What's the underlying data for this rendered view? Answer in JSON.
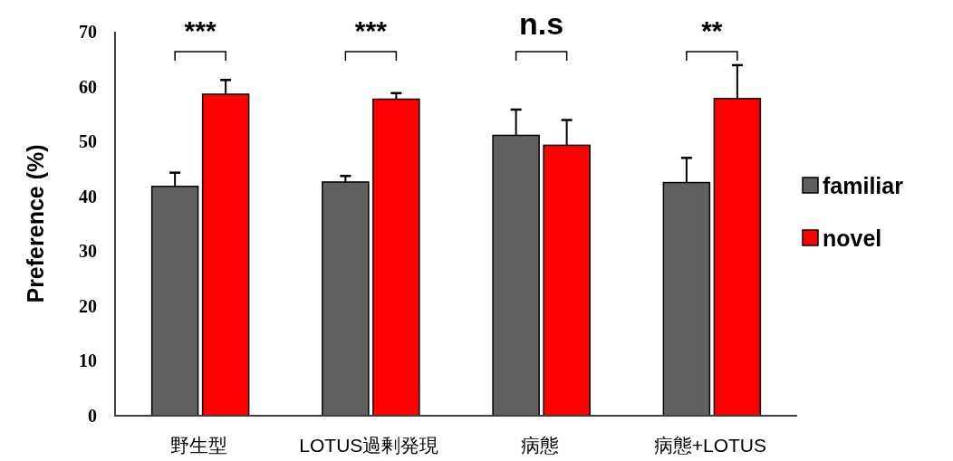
{
  "chart_data": {
    "type": "bar",
    "ylabel": "Preference (%)",
    "categories": [
      "野生型",
      "LOTUS過剰発現",
      "病態",
      "病態+LOTUS"
    ],
    "series": [
      {
        "name": "familiar",
        "color": "#606060",
        "values": [
          41.8,
          42.6,
          51.1,
          42.5
        ],
        "errors": [
          [
            41.8,
            44.3
          ],
          [
            42.6,
            43.7
          ],
          [
            51.1,
            55.8
          ],
          [
            42.5,
            47.0
          ]
        ]
      },
      {
        "name": "novel",
        "color": "#ff0000",
        "values": [
          58.6,
          57.7,
          49.3,
          57.8
        ],
        "errors": [
          [
            58.6,
            61.2
          ],
          [
            57.7,
            58.8
          ],
          [
            49.3,
            53.9
          ],
          [
            57.8,
            63.9
          ]
        ]
      }
    ],
    "annotations": [
      "***",
      "***",
      "n.s",
      "**"
    ],
    "ylim": [
      0,
      70
    ],
    "yticks": [
      0,
      10,
      20,
      30,
      40,
      50,
      60,
      70
    ],
    "grid": false,
    "legend": "right"
  }
}
